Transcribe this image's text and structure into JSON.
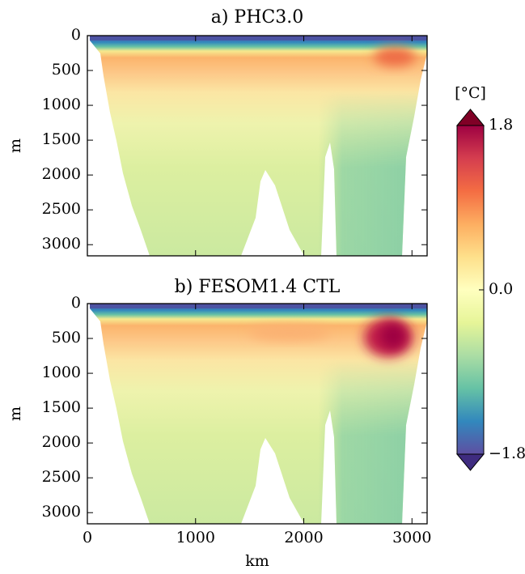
{
  "chart_data": [
    {
      "type": "contour",
      "title": "a) PHC3.0",
      "ylabel": "m",
      "xlim": [
        0,
        3140
      ],
      "ylim": [
        3160,
        0
      ],
      "xticks": [
        0,
        1000,
        2000,
        3000
      ],
      "xtick_labels": false,
      "yticks": [
        0,
        500,
        1000,
        1500,
        2000,
        2500,
        3000
      ]
    },
    {
      "type": "contour",
      "title": "b) FESOM1.4 CTL",
      "xlabel": "km",
      "ylabel": "m",
      "xlim": [
        0,
        3140
      ],
      "ylim": [
        3160,
        0
      ],
      "xticks": [
        0,
        1000,
        2000,
        3000
      ],
      "xtick_labels": true,
      "yticks": [
        0,
        500,
        1000,
        1500,
        2000,
        2500,
        3000
      ]
    }
  ],
  "colorbar": {
    "label": "[°C]",
    "lim": [
      -1.8,
      1.8
    ],
    "ticks": [
      1.8,
      {
        "value": 0,
        "label": "0.0"
      },
      {
        "value": -1.8,
        "label": "−1.8"
      }
    ]
  }
}
